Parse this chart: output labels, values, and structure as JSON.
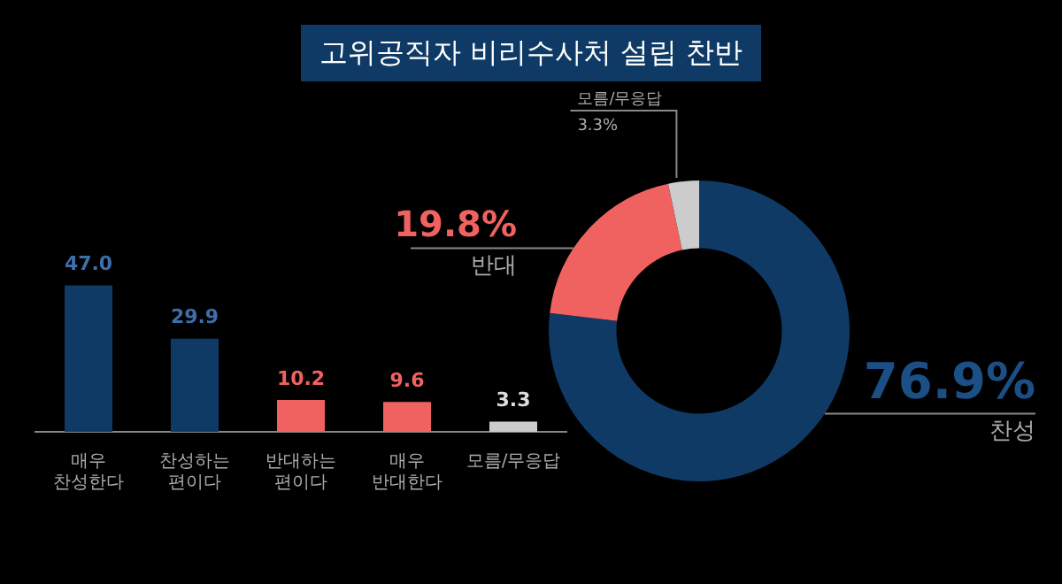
{
  "chart_data": [
    {
      "type": "bar",
      "title": "고위공직자 비리수사처 설립 찬반",
      "categories": [
        "매우 찬성한다",
        "찬성하는 편이다",
        "반대하는 편이다",
        "매우 반대한다",
        "모름/무응답"
      ],
      "values": [
        47.0,
        29.9,
        10.2,
        9.6,
        3.3
      ],
      "colors": [
        "#0f3a66",
        "#0f3a66",
        "#f0625f",
        "#f0625f",
        "#cccccc"
      ],
      "value_labels": [
        "47.0",
        "29.9",
        "10.2",
        "9.6",
        "3.3"
      ],
      "tick_labels": "x",
      "legend": false,
      "grid": false
    },
    {
      "type": "donut",
      "categories": [
        "찬성",
        "반대",
        "모름/무응답"
      ],
      "values": [
        76.9,
        19.8,
        3.3
      ],
      "colors": [
        "#0f3a66",
        "#f0625f",
        "#cccccc"
      ],
      "value_labels": [
        "76.9%",
        "19.8%",
        "3.3%"
      ],
      "legend": false
    }
  ]
}
